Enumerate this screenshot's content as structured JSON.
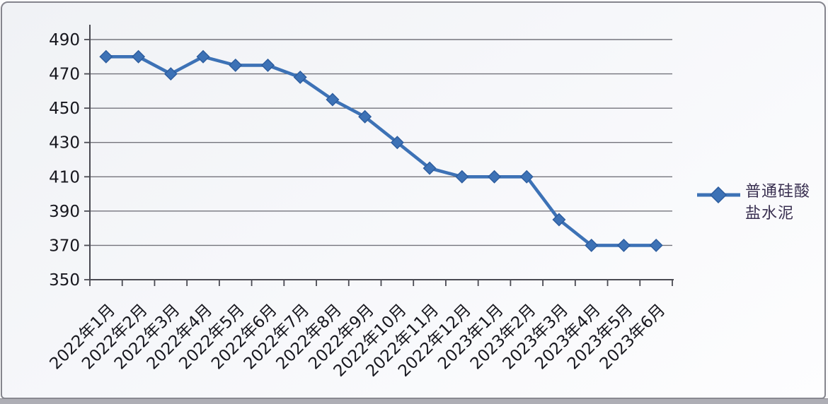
{
  "chart_data": {
    "type": "line",
    "title": "",
    "xlabel": "",
    "ylabel": "",
    "categories": [
      "2022年1月",
      "2022年2月",
      "2022年3月",
      "2022年4月",
      "2022年5月",
      "2022年6月",
      "2022年7月",
      "2022年8月",
      "2022年9月",
      "2022年10月",
      "2022年11月",
      "2022年12月",
      "2023年1月",
      "2023年2月",
      "2023年3月",
      "2023年4月",
      "2023年5月",
      "2023年6月"
    ],
    "series": [
      {
        "name": "普通硅酸盐水泥",
        "values": [
          480,
          480,
          470,
          480,
          475,
          475,
          468,
          455,
          445,
          430,
          415,
          410,
          410,
          410,
          385,
          370,
          370,
          370
        ]
      }
    ],
    "ylim": [
      350,
      490
    ],
    "yticks": [
      350,
      370,
      390,
      410,
      430,
      450,
      470,
      490
    ],
    "grid": true,
    "marker": "diamond",
    "legend_position": "right"
  },
  "legend": {
    "lines": [
      "普通硅酸",
      "盐水泥"
    ]
  },
  "colors": {
    "line": "#3d72b6",
    "marker_fill": "#3d72b6",
    "marker_stroke": "#2c5c9e",
    "grid": "#74747c",
    "axis": "#4a4a52",
    "tick_label": "#17171e",
    "legend_text": "#3a3051",
    "panel_border": "#85858d"
  }
}
